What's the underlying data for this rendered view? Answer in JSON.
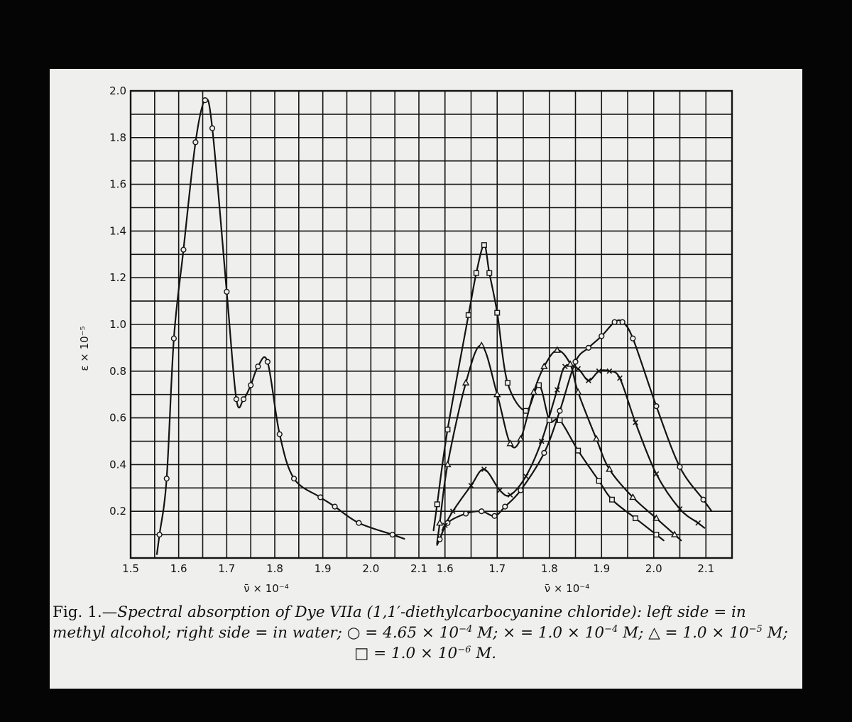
{
  "chart_data": [
    {
      "type": "line",
      "panel": "left",
      "xlabel": "ν̄ × 10⁻⁴",
      "ylabel": "ε × 10⁻⁵",
      "xlim": [
        1.5,
        2.1
      ],
      "ylim": [
        0,
        2.0
      ],
      "x_ticks": [
        "1.5",
        "1.6",
        "1.7",
        "1.8",
        "1.9",
        "2.0",
        "2.1"
      ],
      "y_ticks": [
        "0.2",
        "0.4",
        "0.6",
        "0.8",
        "1.0",
        "1.2",
        "1.4",
        "1.6",
        "1.8",
        "2.0"
      ],
      "grid": true,
      "series": [
        {
          "name": "○",
          "marker": "circle",
          "points": [
            [
              1.56,
              0.1
            ],
            [
              1.575,
              0.34
            ],
            [
              1.59,
              0.94
            ],
            [
              1.61,
              1.32
            ],
            [
              1.635,
              1.78
            ],
            [
              1.655,
              1.96
            ],
            [
              1.67,
              1.84
            ],
            [
              1.7,
              1.14
            ],
            [
              1.72,
              0.68
            ],
            [
              1.735,
              0.68
            ],
            [
              1.75,
              0.74
            ],
            [
              1.765,
              0.82
            ],
            [
              1.785,
              0.84
            ],
            [
              1.81,
              0.53
            ],
            [
              1.84,
              0.34
            ],
            [
              1.895,
              0.26
            ],
            [
              1.925,
              0.22
            ],
            [
              1.975,
              0.15
            ],
            [
              2.045,
              0.1
            ]
          ]
        }
      ]
    },
    {
      "type": "line",
      "panel": "right",
      "xlabel": "ν̄ × 10⁻⁴",
      "xlim": [
        1.55,
        2.15
      ],
      "ylim": [
        0,
        2.0
      ],
      "x_ticks": [
        "1.6",
        "1.7",
        "1.8",
        "1.9",
        "2.0",
        "2.1"
      ],
      "grid": true,
      "series": [
        {
          "name": "○",
          "marker": "circle",
          "points": [
            [
              1.59,
              0.08
            ],
            [
              1.605,
              0.15
            ],
            [
              1.64,
              0.19
            ],
            [
              1.67,
              0.2
            ],
            [
              1.695,
              0.18
            ],
            [
              1.715,
              0.22
            ],
            [
              1.745,
              0.29
            ],
            [
              1.79,
              0.45
            ],
            [
              1.82,
              0.63
            ],
            [
              1.85,
              0.84
            ],
            [
              1.875,
              0.9
            ],
            [
              1.9,
              0.95
            ],
            [
              1.925,
              1.01
            ],
            [
              1.94,
              1.01
            ],
            [
              1.96,
              0.94
            ],
            [
              2.005,
              0.65
            ],
            [
              2.05,
              0.39
            ],
            [
              2.095,
              0.25
            ]
          ]
        },
        {
          "name": "×",
          "marker": "x",
          "points": [
            [
              1.6,
              0.14
            ],
            [
              1.615,
              0.2
            ],
            [
              1.65,
              0.31
            ],
            [
              1.675,
              0.38
            ],
            [
              1.705,
              0.29
            ],
            [
              1.725,
              0.27
            ],
            [
              1.755,
              0.35
            ],
            [
              1.785,
              0.5
            ],
            [
              1.815,
              0.72
            ],
            [
              1.83,
              0.82
            ],
            [
              1.855,
              0.81
            ],
            [
              1.875,
              0.76
            ],
            [
              1.895,
              0.8
            ],
            [
              1.915,
              0.8
            ],
            [
              1.935,
              0.77
            ],
            [
              1.965,
              0.58
            ],
            [
              2.005,
              0.36
            ],
            [
              2.05,
              0.21
            ],
            [
              2.085,
              0.15
            ]
          ]
        },
        {
          "name": "△",
          "marker": "triangle",
          "points": [
            [
              1.59,
              0.15
            ],
            [
              1.605,
              0.4
            ],
            [
              1.64,
              0.75
            ],
            [
              1.67,
              0.91
            ],
            [
              1.7,
              0.7
            ],
            [
              1.725,
              0.49
            ],
            [
              1.745,
              0.51
            ],
            [
              1.77,
              0.71
            ],
            [
              1.79,
              0.82
            ],
            [
              1.815,
              0.89
            ],
            [
              1.84,
              0.83
            ],
            [
              1.855,
              0.71
            ],
            [
              1.89,
              0.51
            ],
            [
              1.915,
              0.38
            ],
            [
              1.96,
              0.26
            ],
            [
              2.005,
              0.17
            ],
            [
              2.04,
              0.1
            ]
          ]
        },
        {
          "name": "□",
          "marker": "square",
          "points": [
            [
              1.585,
              0.23
            ],
            [
              1.605,
              0.55
            ],
            [
              1.645,
              1.04
            ],
            [
              1.66,
              1.22
            ],
            [
              1.675,
              1.34
            ],
            [
              1.685,
              1.22
            ],
            [
              1.7,
              1.05
            ],
            [
              1.72,
              0.75
            ],
            [
              1.755,
              0.63
            ],
            [
              1.78,
              0.74
            ],
            [
              1.8,
              0.59
            ],
            [
              1.82,
              0.59
            ],
            [
              1.855,
              0.46
            ],
            [
              1.895,
              0.33
            ],
            [
              1.92,
              0.25
            ],
            [
              1.965,
              0.17
            ],
            [
              2.005,
              0.1
            ]
          ]
        }
      ]
    }
  ],
  "caption": {
    "line1": [
      {
        "text": "Fig. 1.—",
        "italic": false
      },
      {
        "text": "Spectral absorption of Dye VIIa (1,1′-diethylcarbocyanine chloride): left side = in",
        "italic": true
      }
    ],
    "line2": [
      {
        "text": "methyl alcohol; right side = in water; ○ = 4.65 × 10",
        "italic": true
      },
      {
        "text": "−4",
        "sup": true
      },
      {
        "text": " M; × = 1.0 × 10",
        "italic": true
      },
      {
        "text": "−4",
        "sup": true
      },
      {
        "text": " M; △ = 1.0 × 10",
        "italic": true
      },
      {
        "text": "−5",
        "sup": true
      },
      {
        "text": " M;",
        "italic": true
      }
    ],
    "line3": [
      {
        "text": "□ = 1.0 × 10",
        "italic": true
      },
      {
        "text": "−6",
        "sup": true
      },
      {
        "text": " M.",
        "italic": true
      }
    ]
  }
}
